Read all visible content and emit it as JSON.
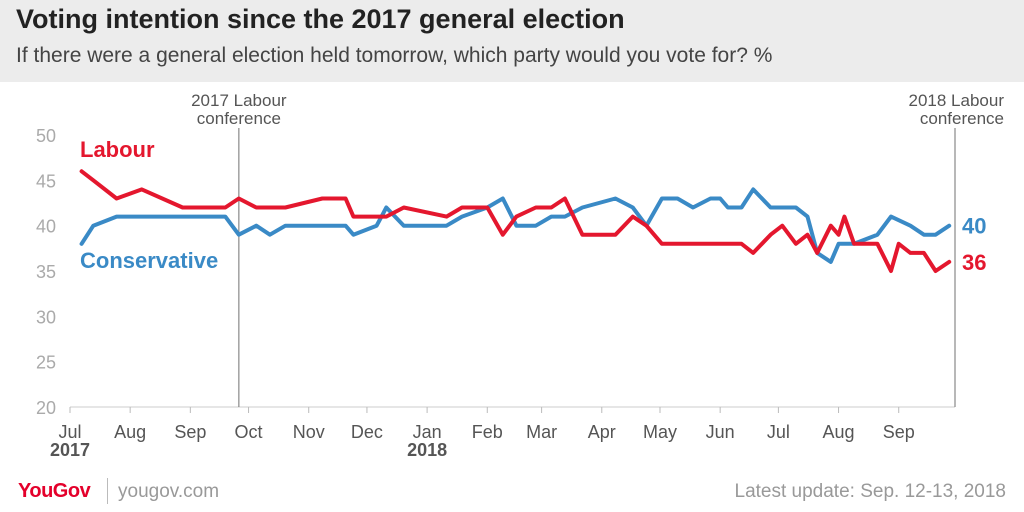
{
  "header": {
    "title": "Voting intention since the 2017 general election",
    "subtitle": "If there were a general election held tomorrow, which party would you vote for? %"
  },
  "footer": {
    "logo": "YouGov",
    "site": "yougov.com",
    "update": "Latest update: Sep. 12-13, 2018"
  },
  "colors": {
    "labour": "#e4172e",
    "conservative": "#3a8ac6",
    "header_bg": "#ececec",
    "axis_text": "#aaaaaa",
    "month_text": "#555555"
  },
  "chart_data": {
    "type": "line",
    "title": "Voting intention since the 2017 general election",
    "subtitle": "If there were a general election held tomorrow, which party would you vote for? %",
    "ylim": [
      20,
      50
    ],
    "yticks": [
      20,
      25,
      30,
      35,
      40,
      45,
      50
    ],
    "x_range": [
      "2017-07-01",
      "2018-09-30"
    ],
    "month_ticks": [
      {
        "label": "Jul",
        "year": "2017",
        "date": "2017-07-01"
      },
      {
        "label": "Aug",
        "date": "2017-08-01"
      },
      {
        "label": "Sep",
        "date": "2017-09-01"
      },
      {
        "label": "Oct",
        "date": "2017-10-01"
      },
      {
        "label": "Nov",
        "date": "2017-11-01"
      },
      {
        "label": "Dec",
        "date": "2017-12-01"
      },
      {
        "label": "Jan",
        "year": "2018",
        "date": "2018-01-01"
      },
      {
        "label": "Feb",
        "date": "2018-02-01"
      },
      {
        "label": "Mar",
        "date": "2018-03-01"
      },
      {
        "label": "Apr",
        "date": "2018-04-01"
      },
      {
        "label": "May",
        "date": "2018-05-01"
      },
      {
        "label": "Jun",
        "date": "2018-06-01"
      },
      {
        "label": "Jul",
        "date": "2018-07-01"
      },
      {
        "label": "Aug",
        "date": "2018-08-01"
      },
      {
        "label": "Sep",
        "date": "2018-09-01"
      }
    ],
    "annotations": [
      {
        "text": "2017 Labour conference",
        "date": "2017-09-26",
        "line1": "2017 Labour",
        "line2": "conference",
        "align": "center"
      },
      {
        "text": "2018 Labour conference",
        "date": "2018-09-30",
        "line1": "2018 Labour",
        "line2": "conference",
        "align": "right"
      }
    ],
    "series": [
      {
        "name": "Labour",
        "color": "#e4172e",
        "end_label": "36",
        "points": [
          [
            "2017-07-07",
            46
          ],
          [
            "2017-07-13",
            45
          ],
          [
            "2017-07-25",
            43
          ],
          [
            "2017-08-07",
            44
          ],
          [
            "2017-08-28",
            42
          ],
          [
            "2017-09-19",
            42
          ],
          [
            "2017-09-26",
            43
          ],
          [
            "2017-10-05",
            42
          ],
          [
            "2017-10-20",
            42
          ],
          [
            "2017-11-08",
            43
          ],
          [
            "2017-11-20",
            43
          ],
          [
            "2017-11-24",
            41
          ],
          [
            "2017-12-11",
            41
          ],
          [
            "2017-12-20",
            42
          ],
          [
            "2018-01-11",
            41
          ],
          [
            "2018-01-19",
            42
          ],
          [
            "2018-02-01",
            42
          ],
          [
            "2018-02-09",
            39
          ],
          [
            "2018-02-16",
            41
          ],
          [
            "2018-02-26",
            42
          ],
          [
            "2018-03-06",
            42
          ],
          [
            "2018-03-13",
            43
          ],
          [
            "2018-03-22",
            39
          ],
          [
            "2018-04-08",
            39
          ],
          [
            "2018-04-17",
            41
          ],
          [
            "2018-04-24",
            40
          ],
          [
            "2018-05-02",
            38
          ],
          [
            "2018-05-18",
            38
          ],
          [
            "2018-06-01",
            38
          ],
          [
            "2018-06-12",
            38
          ],
          [
            "2018-06-18",
            37
          ],
          [
            "2018-06-27",
            39
          ],
          [
            "2018-07-03",
            40
          ],
          [
            "2018-07-10",
            38
          ],
          [
            "2018-07-16",
            39
          ],
          [
            "2018-07-21",
            37
          ],
          [
            "2018-07-28",
            40
          ],
          [
            "2018-08-01",
            39
          ],
          [
            "2018-08-04",
            41
          ],
          [
            "2018-08-09",
            38
          ],
          [
            "2018-08-15",
            38
          ],
          [
            "2018-08-21",
            38
          ],
          [
            "2018-08-28",
            35
          ],
          [
            "2018-09-01",
            38
          ],
          [
            "2018-09-07",
            37
          ],
          [
            "2018-09-14",
            37
          ],
          [
            "2018-09-20",
            35
          ],
          [
            "2018-09-27",
            36
          ]
        ]
      },
      {
        "name": "Conservative",
        "color": "#3a8ac6",
        "end_label": "40",
        "points": [
          [
            "2017-07-07",
            38
          ],
          [
            "2017-07-13",
            40
          ],
          [
            "2017-07-25",
            41
          ],
          [
            "2017-08-07",
            41
          ],
          [
            "2017-08-28",
            41
          ],
          [
            "2017-09-19",
            41
          ],
          [
            "2017-09-26",
            39
          ],
          [
            "2017-10-05",
            40
          ],
          [
            "2017-10-12",
            39
          ],
          [
            "2017-10-20",
            40
          ],
          [
            "2017-11-08",
            40
          ],
          [
            "2017-11-20",
            40
          ],
          [
            "2017-11-24",
            39
          ],
          [
            "2017-12-06",
            40
          ],
          [
            "2017-12-11",
            42
          ],
          [
            "2017-12-20",
            40
          ],
          [
            "2018-01-11",
            40
          ],
          [
            "2018-01-19",
            41
          ],
          [
            "2018-02-01",
            42
          ],
          [
            "2018-02-09",
            43
          ],
          [
            "2018-02-16",
            40
          ],
          [
            "2018-02-26",
            40
          ],
          [
            "2018-03-06",
            41
          ],
          [
            "2018-03-13",
            41
          ],
          [
            "2018-03-22",
            42
          ],
          [
            "2018-04-08",
            43
          ],
          [
            "2018-04-17",
            42
          ],
          [
            "2018-04-24",
            40
          ],
          [
            "2018-05-02",
            43
          ],
          [
            "2018-05-10",
            43
          ],
          [
            "2018-05-18",
            42
          ],
          [
            "2018-05-27",
            43
          ],
          [
            "2018-06-01",
            43
          ],
          [
            "2018-06-05",
            42
          ],
          [
            "2018-06-12",
            42
          ],
          [
            "2018-06-18",
            44
          ],
          [
            "2018-06-27",
            42
          ],
          [
            "2018-07-03",
            42
          ],
          [
            "2018-07-10",
            42
          ],
          [
            "2018-07-16",
            41
          ],
          [
            "2018-07-21",
            37
          ],
          [
            "2018-07-28",
            36
          ],
          [
            "2018-08-01",
            38
          ],
          [
            "2018-08-09",
            38
          ],
          [
            "2018-08-21",
            39
          ],
          [
            "2018-08-28",
            41
          ],
          [
            "2018-09-07",
            40
          ],
          [
            "2018-09-14",
            39
          ],
          [
            "2018-09-20",
            39
          ],
          [
            "2018-09-27",
            40
          ]
        ]
      }
    ]
  }
}
